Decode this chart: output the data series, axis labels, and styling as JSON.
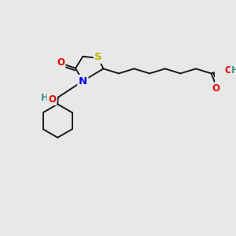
{
  "bg_color": "#e8e8e8",
  "bond_color": "#1a1a1a",
  "bond_lw": 1.4,
  "atom_colors": {
    "S": "#b8b800",
    "N": "#0000ee",
    "O": "#ee0000",
    "H_o": "#3a9a8a",
    "C": "#1a1a1a"
  },
  "fs": 8.5,
  "fig_w": 3.0,
  "fig_h": 3.0,
  "dpi": 100
}
